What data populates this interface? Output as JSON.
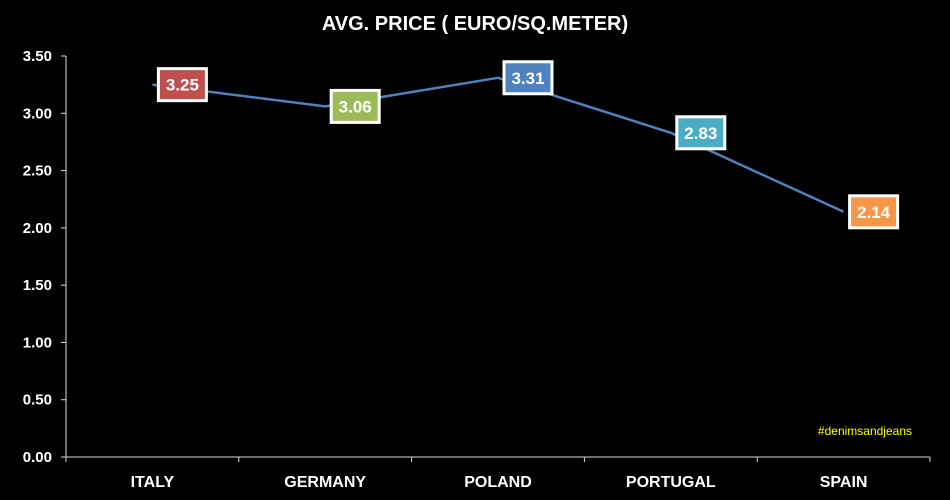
{
  "chart_data": {
    "type": "line",
    "title": "AVG. PRICE ( EURO/SQ.METER)",
    "categories": [
      "ITALY",
      "GERMANY",
      "POLAND",
      "PORTUGAL",
      "SPAIN"
    ],
    "values": [
      3.25,
      3.06,
      3.31,
      2.83,
      2.14
    ],
    "data_labels": [
      "3.25",
      "3.06",
      "3.31",
      "2.83",
      "2.14"
    ],
    "label_colors": [
      "#c0504d",
      "#9bbb59",
      "#4f81bd",
      "#4bacc6",
      "#f79646"
    ],
    "line_color": "#4f81bd",
    "ylim": [
      0,
      3.5
    ],
    "yticks": [
      0,
      0.5,
      1.0,
      1.5,
      2.0,
      2.5,
      3.0,
      3.5
    ],
    "ytick_labels": [
      "0.00",
      "0.50",
      "1.00",
      "1.50",
      "2.00",
      "2.50",
      "3.00",
      "3.50"
    ],
    "grid": false,
    "xlabel": "",
    "ylabel": ""
  },
  "watermark": "#denimsandjeans"
}
